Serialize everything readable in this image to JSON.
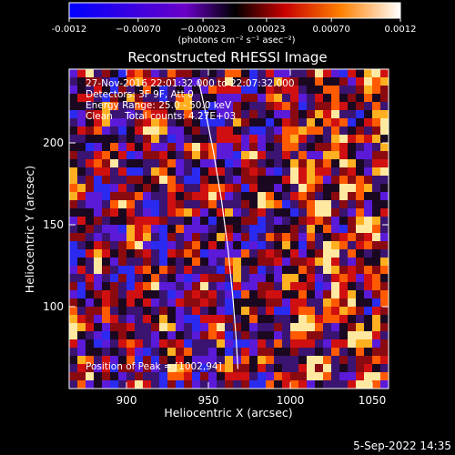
{
  "chart_data": {
    "type": "heatmap",
    "title": "Reconstructed RHESSI Image",
    "xlabel": "Heliocentric X (arcsec)",
    "ylabel": "Heliocentric Y (arcsec)",
    "xlim": [
      865,
      1060
    ],
    "ylim": [
      50,
      245
    ],
    "x_ticks": [
      900,
      950,
      1000,
      1050
    ],
    "y_ticks": [
      100,
      150,
      200
    ],
    "x_tick_labels": [
      "900",
      "950",
      "1000",
      "1050"
    ],
    "y_tick_labels": [
      "100",
      "150",
      "200"
    ],
    "colorbar": {
      "min": -0.0012,
      "max": 0.0012,
      "tick_values": [
        -0.0012,
        -0.0007,
        -0.00023,
        0.00023,
        0.0007,
        0.0012
      ],
      "tick_labels": [
        "-0.0012",
        "−0.00070",
        "−0.00023",
        "0.00023",
        "0.00070",
        "0.0012"
      ],
      "unit_label": "(photons cm⁻² s⁻¹ asec⁻²)"
    },
    "limb_curve": {
      "x": [
        944,
        948,
        953,
        958,
        962,
        965,
        967,
        968
      ],
      "y": [
        238,
        220,
        195,
        165,
        135,
        105,
        80,
        62
      ]
    },
    "peak_position": [
      1002,
      94
    ],
    "grid": false
  },
  "info": {
    "time_range": "27-Nov-2016 22:01:32.000 to 22:07:32.000",
    "detectors": "Detectors: 3F 9F, Att 0",
    "energy_range": "Energy Range: 25.0 - 50.0 keV",
    "clean_counts": "Clean    Total counts: 4.27E+03",
    "peak_text": "Position of Peak = [1002,94]"
  },
  "footer": {
    "date": "5-Sep-2022 14:35"
  }
}
